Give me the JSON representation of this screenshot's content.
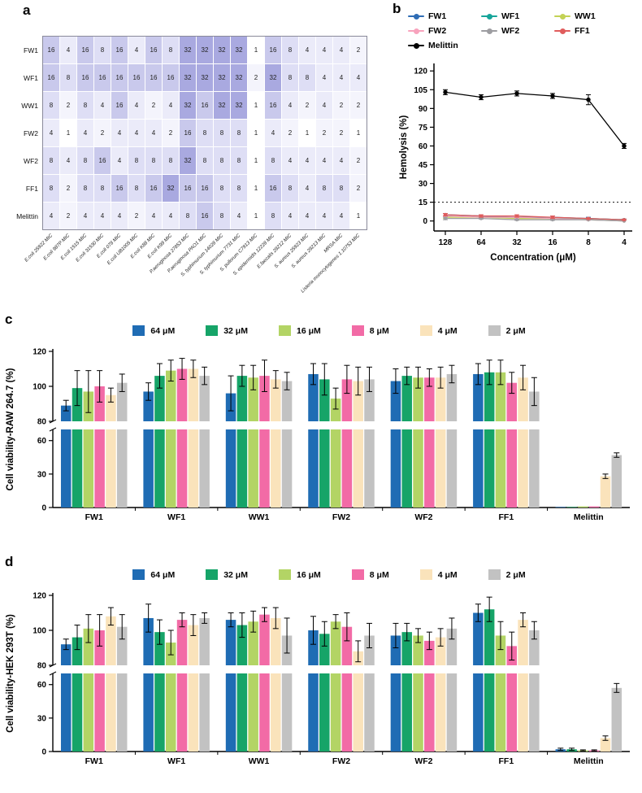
{
  "figure": {
    "panel_labels": {
      "a": "a",
      "b": "b",
      "c": "c",
      "d": "d"
    }
  },
  "chart_data": [
    {
      "id": "mic_heatmap",
      "panel": "a",
      "type": "heatmap",
      "rows": [
        "FW1",
        "WF1",
        "WW1",
        "FW2",
        "WF2",
        "FF1",
        "Melittin"
      ],
      "columns": [
        "E.coli 25922 MIC",
        "E.coli 987P MIC",
        "E.coli 1515 MIC",
        "E.coli 31530 MIC",
        "E.coli 078 MIC",
        "E.coli UB1005 MIC",
        "E.coli K88 MIC",
        "E.coli K99 MIC",
        "P.aeruginosa 27853 MIC",
        "P.aeruginosa PAO1 MIC",
        "S. typhimurium 14028 MIC",
        "S. typhimurium 7731 MIC",
        "S. pullorum C7913 MIC",
        "S. epidermidis 12228 MIC",
        "E.faecalis 29212 MIC",
        "S. aureus 25923 MIC",
        "S. aureus 29213 MIC",
        "MRSA MIC",
        "Listeria monocytogenes 1.10753 MIC"
      ],
      "values": [
        [
          16,
          4,
          16,
          8,
          16,
          4,
          16,
          8,
          32,
          32,
          32,
          32,
          1,
          16,
          8,
          4,
          4,
          4,
          2
        ],
        [
          16,
          8,
          16,
          16,
          16,
          16,
          16,
          16,
          32,
          32,
          32,
          32,
          2,
          32,
          8,
          8,
          4,
          4,
          4
        ],
        [
          8,
          2,
          8,
          4,
          16,
          4,
          2,
          4,
          32,
          16,
          32,
          32,
          1,
          16,
          4,
          2,
          4,
          2,
          2
        ],
        [
          4,
          1,
          4,
          2,
          4,
          4,
          4,
          2,
          16,
          8,
          8,
          8,
          1,
          4,
          2,
          1,
          2,
          2,
          1
        ],
        [
          8,
          4,
          8,
          16,
          4,
          8,
          8,
          8,
          32,
          8,
          8,
          8,
          1,
          8,
          4,
          4,
          4,
          4,
          2
        ],
        [
          8,
          2,
          8,
          8,
          16,
          8,
          16,
          32,
          16,
          16,
          8,
          8,
          1,
          16,
          8,
          4,
          8,
          8,
          2
        ],
        [
          4,
          2,
          4,
          4,
          4,
          2,
          4,
          4,
          8,
          16,
          8,
          4,
          1,
          8,
          4,
          4,
          4,
          4,
          1
        ]
      ],
      "color_scale": {
        "1": "#ffffff",
        "2": "#f4f4fc",
        "4": "#ebebf9",
        "8": "#dedef5",
        "16": "#c9c9ec",
        "32": "#a9a9e0"
      }
    },
    {
      "id": "hemolysis",
      "panel": "b",
      "type": "line",
      "xlabel": "Concentration (μM)",
      "ylabel": "Hemolysis (%)",
      "x_categories": [
        "128",
        "64",
        "32",
        "16",
        "8",
        "4"
      ],
      "yticks": [
        0,
        15,
        30,
        45,
        60,
        75,
        90,
        105,
        120
      ],
      "ylim": [
        -8,
        126
      ],
      "threshold": 15,
      "series": [
        {
          "name": "FW1",
          "color": "#2f6db5",
          "values": [
            5,
            4,
            3,
            3,
            2,
            1
          ],
          "errors": [
            1,
            1,
            1,
            1,
            1,
            0.5
          ]
        },
        {
          "name": "WF1",
          "color": "#17a59a",
          "values": [
            4,
            3,
            3,
            2,
            2,
            1
          ],
          "errors": [
            1,
            1,
            1,
            1,
            0.5,
            0.5
          ]
        },
        {
          "name": "WW1",
          "color": "#c3d255",
          "values": [
            3,
            3,
            2,
            2,
            1,
            0
          ],
          "errors": [
            1,
            1,
            0.5,
            0.5,
            0.5,
            0.3
          ]
        },
        {
          "name": "FW2",
          "color": "#f8a3bd",
          "values": [
            4,
            3,
            3,
            2,
            1,
            0
          ],
          "errors": [
            1,
            1,
            1,
            0.5,
            0.5,
            0.3
          ]
        },
        {
          "name": "WF2",
          "color": "#9d9da1",
          "values": [
            2,
            2,
            1,
            1,
            1,
            0
          ],
          "errors": [
            1,
            0.5,
            0.5,
            0.5,
            0.3,
            0.3
          ]
        },
        {
          "name": "FF1",
          "color": "#e05c5c",
          "values": [
            5,
            4,
            4,
            3,
            2,
            1
          ],
          "errors": [
            1,
            1,
            1,
            1,
            0.5,
            0.5
          ]
        },
        {
          "name": "Melittin",
          "color": "#000000",
          "values": [
            103,
            99,
            102,
            100,
            97,
            60
          ],
          "errors": [
            2,
            2,
            2,
            2,
            4,
            2
          ]
        }
      ]
    },
    {
      "id": "raw_viability",
      "panel": "c",
      "type": "bar",
      "ylabel": "Cell viability-RAW 264.7 (%)",
      "categories": [
        "FW1",
        "WF1",
        "WW1",
        "FW2",
        "WF2",
        "FF1",
        "Melittin"
      ],
      "axis_break": {
        "lower_range": [
          0,
          70
        ],
        "upper_range": [
          80,
          120
        ],
        "lower_ticks": [
          0,
          30,
          60
        ],
        "upper_ticks": [
          80,
          100,
          120
        ]
      },
      "series": [
        {
          "name": "64 μM",
          "color": "#1f6cb4",
          "values": [
            89,
            97,
            96,
            107,
            103,
            107,
            0.5
          ],
          "errors": [
            3,
            5,
            10,
            6,
            7,
            6,
            0.3
          ]
        },
        {
          "name": "32 μM",
          "color": "#16a468",
          "values": [
            99,
            106,
            106,
            104,
            106,
            108,
            0.5
          ],
          "errors": [
            10,
            7,
            6,
            9,
            5,
            7,
            0.3
          ]
        },
        {
          "name": "16 μM",
          "color": "#b3d465",
          "values": [
            97,
            109,
            105,
            93,
            105,
            108,
            1
          ],
          "errors": [
            12,
            6,
            7,
            6,
            6,
            7,
            0.3
          ]
        },
        {
          "name": "8 μM",
          "color": "#f26ba6",
          "values": [
            100,
            110,
            106,
            104,
            105,
            102,
            1
          ],
          "errors": [
            9,
            6,
            9,
            8,
            5,
            6,
            0.3
          ]
        },
        {
          "name": "4 μM",
          "color": "#fae3bb",
          "values": [
            95,
            110,
            104,
            103,
            105,
            105,
            28
          ],
          "errors": [
            4,
            5,
            5,
            8,
            6,
            7,
            2
          ]
        },
        {
          "name": "2 μM",
          "color": "#c2c2c2",
          "values": [
            102,
            106,
            103,
            104,
            107,
            97,
            47
          ],
          "errors": [
            5,
            5,
            5,
            7,
            5,
            8,
            2
          ]
        }
      ]
    },
    {
      "id": "hek_viability",
      "panel": "d",
      "type": "bar",
      "ylabel": "Cell viability-HEK 293T (%)",
      "categories": [
        "FW1",
        "WF1",
        "WW1",
        "FW2",
        "WF2",
        "FF1",
        "Melittin"
      ],
      "axis_break": {
        "lower_range": [
          0,
          70
        ],
        "upper_range": [
          80,
          120
        ],
        "lower_ticks": [
          0,
          30,
          60
        ],
        "upper_ticks": [
          80,
          100,
          120
        ]
      },
      "series": [
        {
          "name": "64 μM",
          "color": "#1f6cb4",
          "values": [
            92,
            107,
            106,
            100,
            97,
            110,
            2
          ],
          "errors": [
            3,
            8,
            4,
            8,
            7,
            5,
            1
          ]
        },
        {
          "name": "32 μM",
          "color": "#16a468",
          "values": [
            96,
            99,
            103,
            98,
            99,
            112,
            2
          ],
          "errors": [
            7,
            7,
            7,
            7,
            5,
            7,
            1
          ]
        },
        {
          "name": "16 μM",
          "color": "#b3d465",
          "values": [
            101,
            93,
            105,
            105,
            97,
            97,
            1
          ],
          "errors": [
            8,
            7,
            6,
            4,
            4,
            8,
            0.5
          ]
        },
        {
          "name": "8 μM",
          "color": "#f26ba6",
          "values": [
            100,
            106,
            109,
            102,
            94,
            91,
            1
          ],
          "errors": [
            9,
            4,
            4,
            8,
            5,
            8,
            0.5
          ]
        },
        {
          "name": "4 μM",
          "color": "#fae3bb",
          "values": [
            108,
            103,
            107,
            88,
            96,
            106,
            12
          ],
          "errors": [
            5,
            6,
            6,
            6,
            5,
            4,
            2
          ]
        },
        {
          "name": "2 μM",
          "color": "#c2c2c2",
          "values": [
            102,
            107,
            97,
            97,
            101,
            100,
            57
          ],
          "errors": [
            7,
            3,
            10,
            7,
            6,
            5,
            4
          ]
        }
      ]
    }
  ]
}
